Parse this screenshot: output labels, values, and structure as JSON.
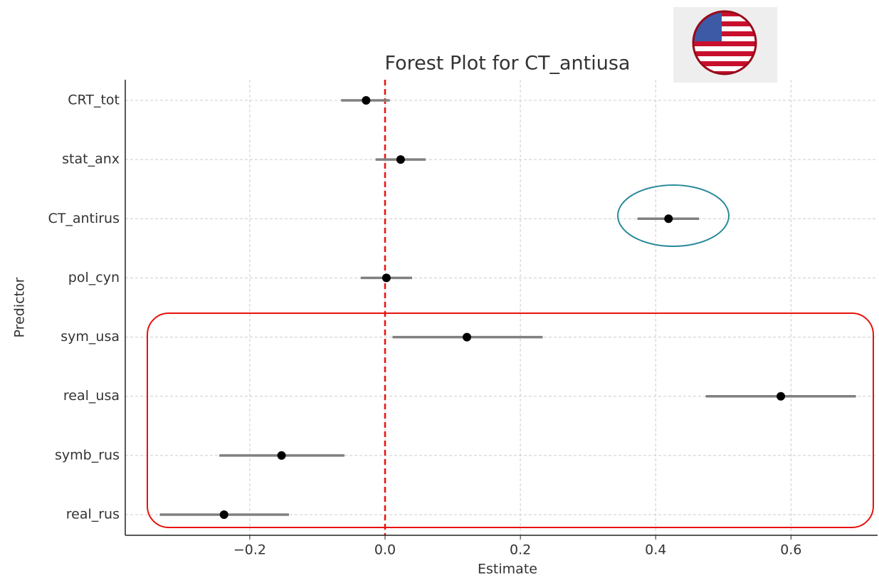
{
  "chart_data": {
    "type": "forest",
    "title": "Forest Plot for CT_antiusa",
    "x_label": "Estimate",
    "y_label": "Predictor",
    "categories": [
      "CRT_tot",
      "stat_anx",
      "CT_antirus",
      "pol_cyn",
      "sym_usa",
      "real_usa",
      "symb_rus",
      "real_rus"
    ],
    "values": [
      -0.028,
      0.023,
      0.419,
      0.002,
      0.121,
      0.585,
      -0.153,
      -0.238
    ],
    "lower": [
      -0.065,
      -0.014,
      0.373,
      -0.036,
      0.011,
      0.474,
      -0.245,
      -0.333
    ],
    "upper": [
      0.007,
      0.06,
      0.464,
      0.04,
      0.233,
      0.696,
      -0.06,
      -0.142
    ],
    "color": "#000000",
    "ci_color": "#808080",
    "xlim": [
      -0.384,
      0.728
    ],
    "xticks": [
      {
        "value": -0.2,
        "label": "−0.2"
      },
      {
        "value": 0,
        "label": "0.0"
      },
      0.2,
      0.4,
      0.6
    ],
    "grid": true,
    "reference_line": {
      "value": 0,
      "color": "#e8120c"
    }
  }
}
